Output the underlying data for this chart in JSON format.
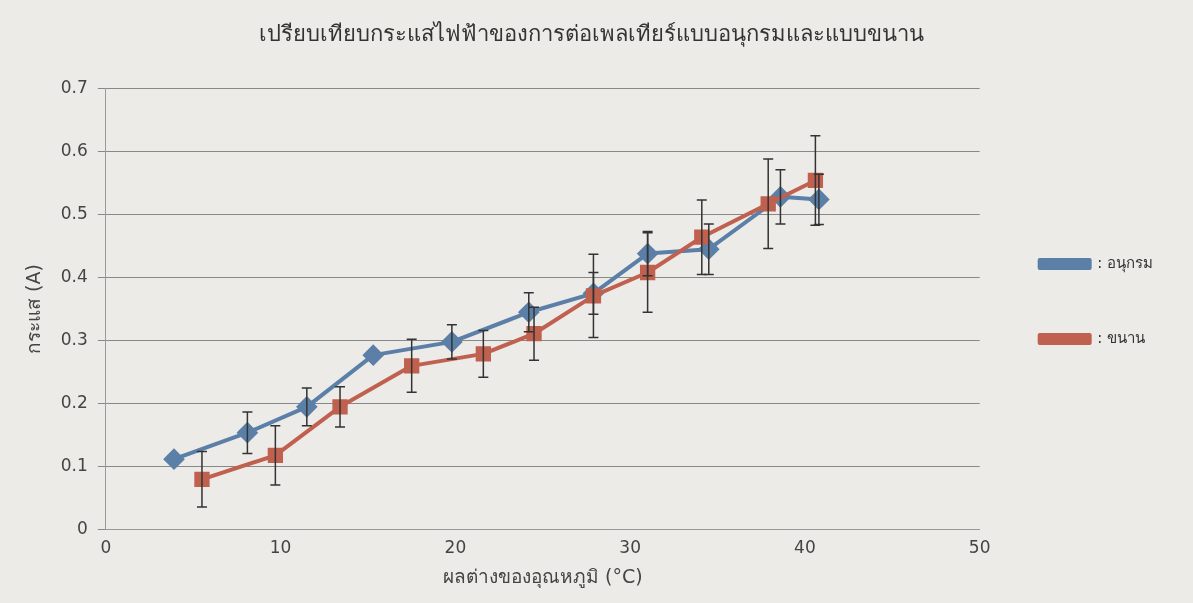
{
  "chart_data": {
    "type": "line",
    "title": "เปรียบเทียบกระแสไฟฟ้าของการต่อเพลเทียร์แบบอนุกรมและแบบขนาน",
    "xlabel": "ผลต่างของอุณหภูมิ (°C)",
    "ylabel": "กระแส (A)",
    "xlim": [
      0,
      50
    ],
    "xticks": [
      0,
      10,
      20,
      30,
      40,
      50
    ],
    "ylim": [
      0,
      0.7
    ],
    "yticks": [
      0,
      0.1,
      0.2,
      0.3,
      0.4,
      0.5,
      0.6,
      0.7
    ],
    "grid": "y",
    "legend": "right",
    "line_style": "solid",
    "series": [
      {
        "name": ": อนุกรม",
        "color": "#5b7fa6",
        "marker": "diamond",
        "x": [
          3.9,
          8.1,
          11.5,
          15.3,
          19.8,
          24.2,
          27.9,
          31.0,
          34.5,
          38.6,
          40.8
        ],
        "values": [
          0.112,
          0.154,
          0.195,
          0.277,
          0.298,
          0.345,
          0.375,
          0.438,
          0.445,
          0.528,
          0.524
        ],
        "errors": [
          null,
          0.033,
          0.03,
          null,
          0.027,
          0.031,
          0.033,
          0.035,
          0.04,
          0.043,
          0.04
        ]
      },
      {
        "name": ": ขนาน",
        "color": "#c0604f",
        "marker": "square",
        "x": [
          5.5,
          9.7,
          13.4,
          17.5,
          21.6,
          24.5,
          27.9,
          31.0,
          34.1,
          37.9,
          40.6
        ],
        "values": [
          0.08,
          0.118,
          0.195,
          0.26,
          0.279,
          0.311,
          0.371,
          0.408,
          0.464,
          0.517,
          0.554
        ],
        "errors": [
          0.044,
          0.047,
          0.032,
          0.042,
          0.037,
          0.042,
          0.066,
          0.063,
          0.059,
          0.071,
          0.071
        ]
      }
    ]
  }
}
